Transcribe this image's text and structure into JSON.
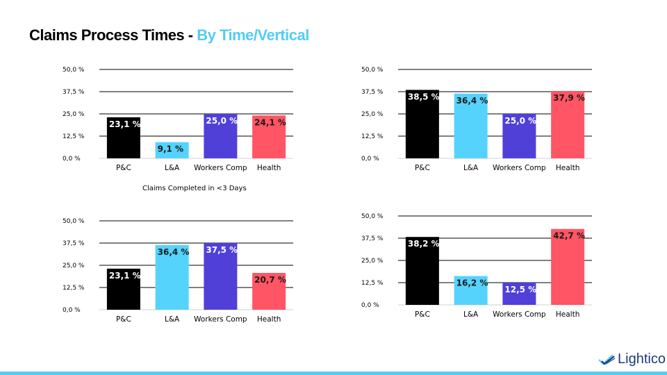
{
  "header": {
    "title_main": "Claims Process Times - ",
    "title_accent": "By Time/Vertical"
  },
  "caption": "Claims Completed in <3 Days",
  "brand": {
    "logo_text": "Lightico",
    "accent": "#55CCF5"
  },
  "colors": {
    "P&C": "#000000",
    "L&A": "#55D3FC",
    "Workers Comp": "#5140D8",
    "Health": "#FF5564"
  },
  "chart_data": [
    {
      "type": "bar",
      "categories": [
        "P&C",
        "L&A",
        "Workers Comp",
        "Health"
      ],
      "values": [
        23.1,
        9.1,
        25.0,
        24.1
      ],
      "labels": [
        "23,1 %",
        "9,1 %",
        "25,0 %",
        "24,1 %"
      ],
      "yticks": [
        "0,0 %",
        "12,5 %",
        "25,0 %",
        "37,5 %",
        "50,0 %"
      ],
      "ylim": [
        0,
        50
      ],
      "grid": true
    },
    {
      "type": "bar",
      "categories": [
        "P&C",
        "L&A",
        "Workers Comp",
        "Health"
      ],
      "values": [
        38.5,
        36.4,
        25.0,
        37.9
      ],
      "labels": [
        "38,5 %",
        "36,4 %",
        "25,0 %",
        "37,9 %"
      ],
      "yticks": [
        "0,0 %",
        "12,5 %",
        "25,0 %",
        "37,5 %",
        "50,0 %"
      ],
      "ylim": [
        0,
        50
      ],
      "grid": true
    },
    {
      "type": "bar",
      "categories": [
        "P&C",
        "L&A",
        "Workers Comp",
        "Health"
      ],
      "values": [
        23.1,
        36.4,
        37.5,
        20.7
      ],
      "labels": [
        "23,1 %",
        "36,4 %",
        "37,5 %",
        "20,7 %"
      ],
      "yticks": [
        "0,0 %",
        "12,5 %",
        "25,0 %",
        "37,5 %",
        "50,0 %"
      ],
      "ylim": [
        0,
        50
      ],
      "grid": true
    },
    {
      "type": "bar",
      "categories": [
        "P&C",
        "L&A",
        "Workers Comp",
        "Health"
      ],
      "values": [
        38.2,
        16.2,
        12.5,
        42.7
      ],
      "labels": [
        "38,2 %",
        "16,2 %",
        "12,5 %",
        "42,7 %"
      ],
      "yticks": [
        "0,0 %",
        "12,5 %",
        "25,0 %",
        "37,5 %",
        "50,0 %"
      ],
      "ylim": [
        0,
        50
      ],
      "grid": true
    }
  ]
}
